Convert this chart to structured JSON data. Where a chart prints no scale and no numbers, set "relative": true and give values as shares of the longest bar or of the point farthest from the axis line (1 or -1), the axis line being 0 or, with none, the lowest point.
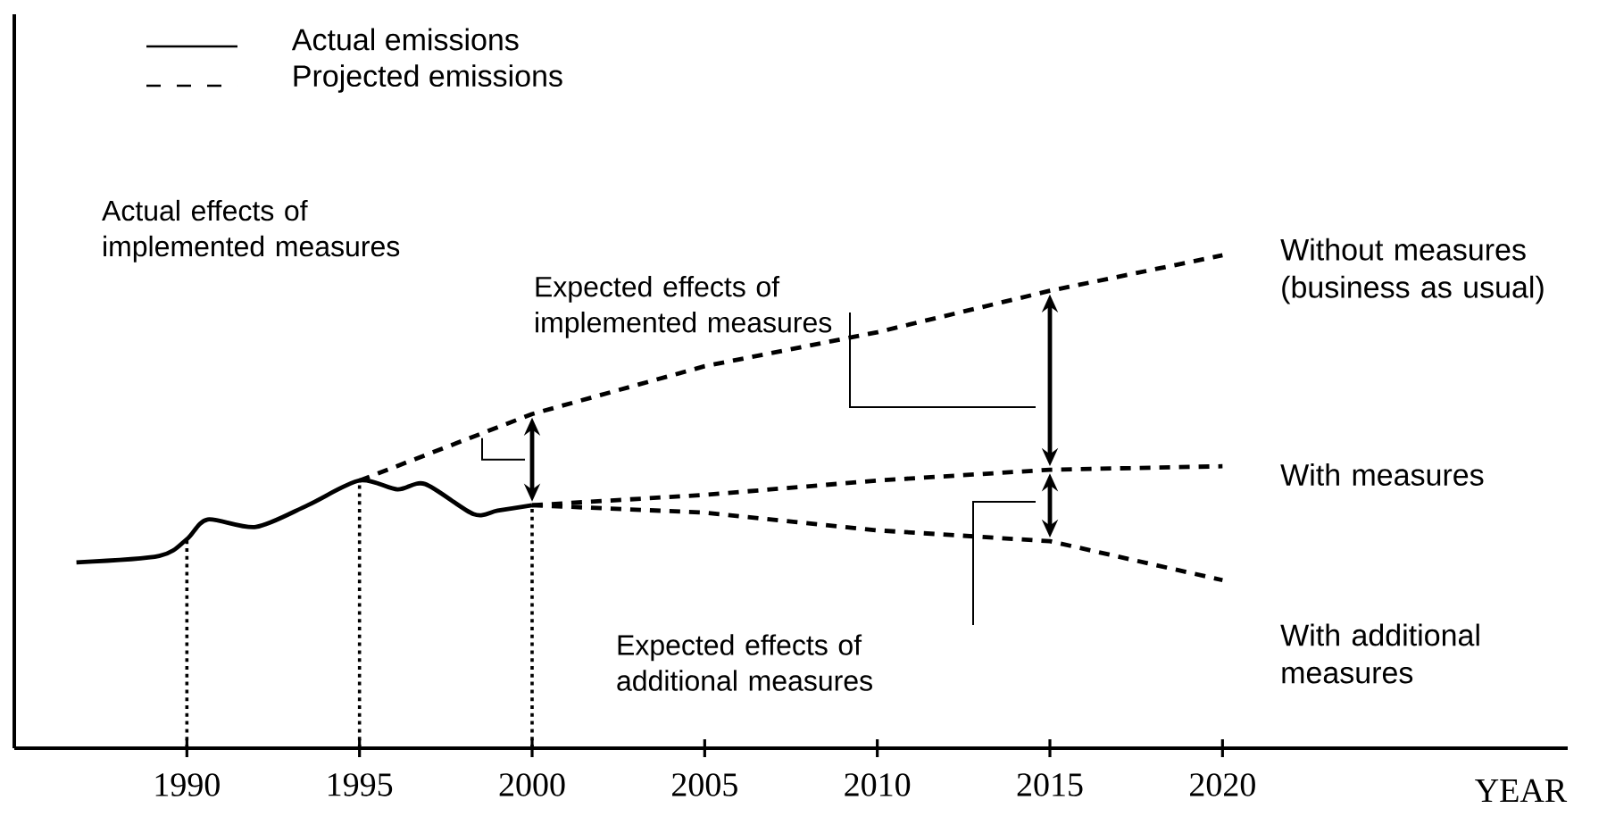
{
  "chart_data": {
    "type": "line",
    "relative": true,
    "xlabel": "YEAR",
    "xlim": [
      1985,
      2030
    ],
    "xticks": [
      1990,
      1995,
      2000,
      2005,
      2010,
      2015,
      2020
    ],
    "legend": "top left",
    "series": [
      {
        "name": "Actual emissions",
        "color": "#000000",
        "line_style": "solid",
        "x": [
          1986.8,
          1989.2,
          1990,
          1990.6,
          1992.0,
          1993.5,
          1995,
          1996.1,
          1996.9,
          1998.3,
          1999.0,
          2000
        ],
        "values": [
          0.377,
          0.39,
          0.424,
          0.464,
          0.449,
          0.493,
          0.543,
          0.525,
          0.536,
          0.475,
          0.482,
          0.493
        ]
      },
      {
        "name": "Without measures (business as usual)",
        "color": "#000000",
        "line_style": "dashed",
        "x": [
          1995,
          2000,
          2005,
          2010,
          2015,
          2020
        ],
        "values": [
          0.543,
          0.678,
          0.775,
          0.844,
          0.928,
          1.0
        ]
      },
      {
        "name": "With measures",
        "color": "#000000",
        "line_style": "dashed",
        "x": [
          2000,
          2005,
          2010,
          2015,
          2020
        ],
        "values": [
          0.493,
          0.514,
          0.543,
          0.565,
          0.572
        ]
      },
      {
        "name": "With additional measures",
        "color": "#000000",
        "line_style": "dashed",
        "x": [
          2000,
          2005,
          2010,
          2015,
          2020
        ],
        "values": [
          0.493,
          0.478,
          0.442,
          0.42,
          0.341
        ]
      }
    ],
    "ref_lines": [
      {
        "axis": "x",
        "value": 1990,
        "line_style": "dotted"
      },
      {
        "axis": "x",
        "value": 1995,
        "line_style": "dotted"
      },
      {
        "axis": "x",
        "value": 2000,
        "line_style": "dotted"
      }
    ],
    "annotations": [
      "Projected emissions",
      "Actual effects of implemented measures",
      "Expected effects of implemented measures",
      "Expected effects of additional measures"
    ]
  }
}
